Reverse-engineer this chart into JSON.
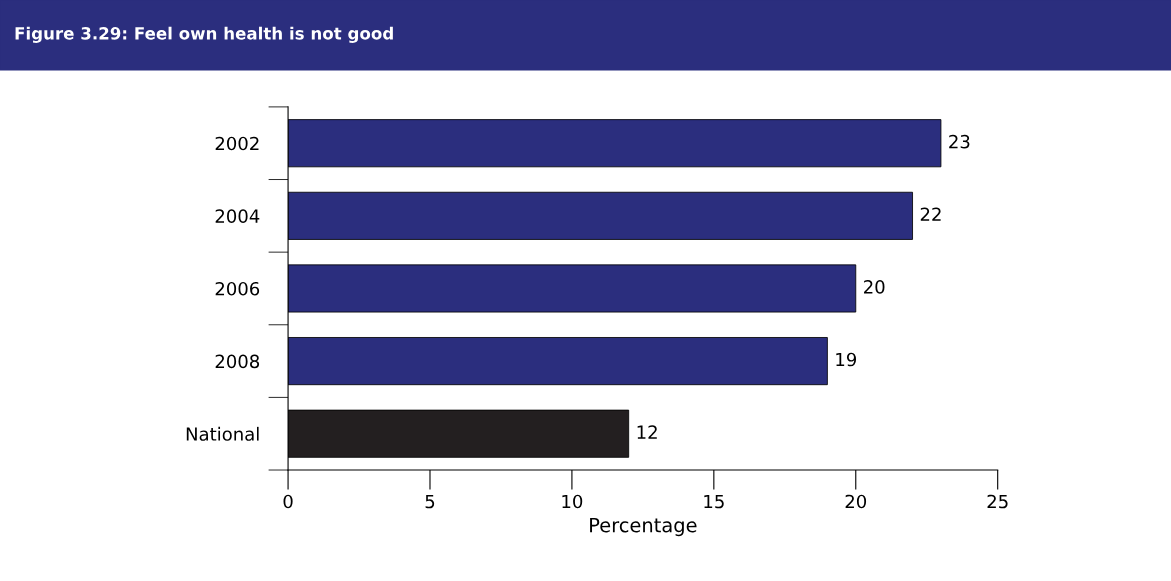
{
  "chart_data": {
    "type": "bar",
    "orientation": "horizontal",
    "title": "Figure 3.29: Feel own health is not good",
    "xlabel": "Percentage",
    "categories": [
      "2002",
      "2004",
      "2006",
      "2008",
      "National"
    ],
    "values": [
      23,
      22,
      20,
      19,
      12
    ],
    "colors": [
      "#2b2e7e",
      "#2b2e7e",
      "#2b2e7e",
      "#2b2e7e",
      "#231f20"
    ],
    "xlim": [
      0,
      25
    ],
    "xticks": [
      0,
      5,
      10,
      15,
      20,
      25
    ],
    "data_labels": true,
    "grid": false,
    "legend": false
  }
}
